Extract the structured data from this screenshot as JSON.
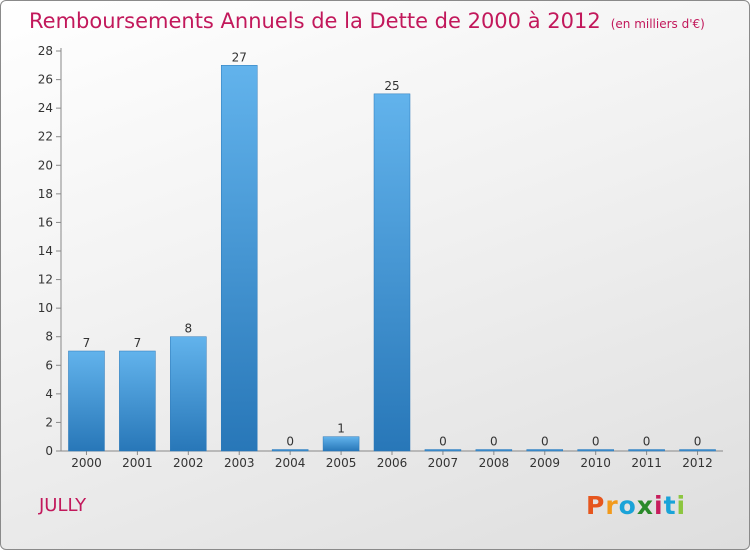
{
  "title": "Remboursements Annuels de la Dette de 2000 à 2012",
  "unit": "(en milliers d'€)",
  "place": "JULLY",
  "brand": {
    "letters": [
      "P",
      "r",
      "o",
      "x",
      "i",
      "t",
      "i"
    ],
    "colors": [
      "#e6561e",
      "#f29a1c",
      "#1aa3d8",
      "#2a8a2a",
      "#c71e5d",
      "#1aa3d8",
      "#8cc63f"
    ]
  },
  "colors": {
    "bar_light": "#62b3ec",
    "bar_dark": "#2877b8",
    "title": "#c2185b"
  },
  "chart_data": {
    "type": "bar",
    "categories": [
      "2000",
      "2001",
      "2002",
      "2003",
      "2004",
      "2005",
      "2006",
      "2007",
      "2008",
      "2009",
      "2010",
      "2011",
      "2012"
    ],
    "values": [
      7,
      7,
      8,
      27,
      0,
      1,
      25,
      0,
      0,
      0,
      0,
      0,
      0
    ],
    "ylim": [
      0,
      28
    ],
    "yticks": [
      0,
      2,
      4,
      6,
      8,
      10,
      12,
      14,
      16,
      18,
      20,
      22,
      24,
      26,
      28
    ],
    "grid": false
  }
}
